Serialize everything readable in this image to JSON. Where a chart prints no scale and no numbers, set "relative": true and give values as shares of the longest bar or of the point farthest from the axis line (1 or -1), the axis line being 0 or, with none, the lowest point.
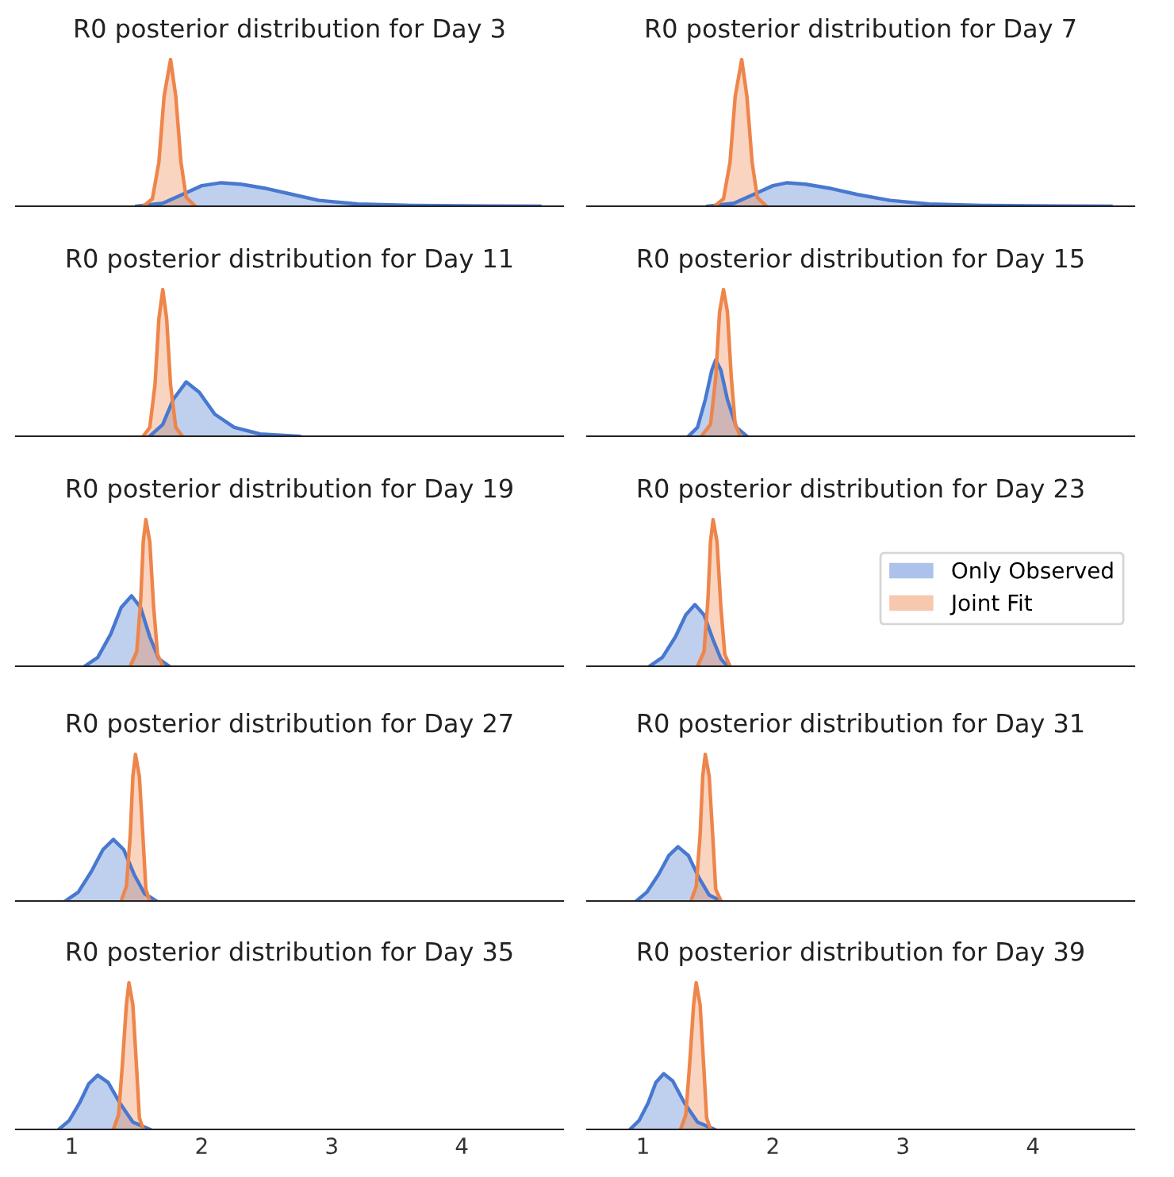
{
  "chart_data": [
    {
      "type": "area",
      "title": "R0 posterior distribution for Day 3",
      "relative": true,
      "xlim": [
        0.57,
        4.78
      ],
      "xticks": [
        1,
        2,
        3,
        4
      ],
      "tick_labels": false,
      "grid": false,
      "series": [
        {
          "color": "#4878d0",
          "x": [
            1.5,
            1.7,
            1.85,
            2.0,
            2.15,
            2.3,
            2.5,
            2.7,
            2.9,
            3.2,
            3.6,
            4.2,
            4.6
          ],
          "values": [
            0,
            0.02,
            0.08,
            0.14,
            0.16,
            0.15,
            0.12,
            0.08,
            0.04,
            0.015,
            0.006,
            0.002,
            0
          ]
        },
        {
          "color": "#ee854a",
          "x": [
            1.55,
            1.62,
            1.67,
            1.71,
            1.76,
            1.8,
            1.84,
            1.88,
            1.95
          ],
          "values": [
            0,
            0.05,
            0.3,
            0.75,
            1,
            0.75,
            0.3,
            0.06,
            0
          ]
        }
      ]
    },
    {
      "type": "area",
      "title": "R0 posterior distribution for Day 7",
      "relative": true,
      "xlim": [
        0.57,
        4.78
      ],
      "xticks": [
        1,
        2,
        3,
        4
      ],
      "tick_labels": false,
      "grid": false,
      "series": [
        {
          "color": "#4878d0",
          "x": [
            1.5,
            1.7,
            1.85,
            2.0,
            2.11,
            2.25,
            2.45,
            2.65,
            2.9,
            3.2,
            3.6,
            4.2,
            4.6
          ],
          "values": [
            0,
            0.02,
            0.08,
            0.14,
            0.16,
            0.15,
            0.12,
            0.08,
            0.04,
            0.015,
            0.006,
            0.002,
            0
          ]
        },
        {
          "color": "#ee854a",
          "x": [
            1.55,
            1.62,
            1.67,
            1.71,
            1.76,
            1.8,
            1.84,
            1.88,
            1.95
          ],
          "values": [
            0,
            0.05,
            0.3,
            0.75,
            1,
            0.75,
            0.3,
            0.06,
            0
          ]
        }
      ]
    },
    {
      "type": "area",
      "title": "R0 posterior distribution for Day 11",
      "relative": true,
      "xlim": [
        0.57,
        4.78
      ],
      "xticks": [
        1,
        2,
        3,
        4
      ],
      "tick_labels": false,
      "grid": false,
      "series": [
        {
          "color": "#4878d0",
          "x": [
            1.6,
            1.7,
            1.78,
            1.88,
            1.98,
            2.1,
            2.25,
            2.45,
            2.75
          ],
          "values": [
            0,
            0.08,
            0.25,
            0.37,
            0.3,
            0.15,
            0.06,
            0.015,
            0
          ]
        },
        {
          "color": "#ee854a",
          "x": [
            1.55,
            1.6,
            1.64,
            1.67,
            1.7,
            1.73,
            1.76,
            1.8,
            1.85
          ],
          "values": [
            0,
            0.06,
            0.35,
            0.8,
            1,
            0.8,
            0.35,
            0.06,
            0
          ]
        }
      ]
    },
    {
      "type": "area",
      "title": "R0 posterior distribution for Day 15",
      "relative": true,
      "xlim": [
        0.57,
        4.78
      ],
      "xticks": [
        1,
        2,
        3,
        4
      ],
      "tick_labels": false,
      "grid": false,
      "series": [
        {
          "color": "#4878d0",
          "x": [
            1.35,
            1.42,
            1.48,
            1.53,
            1.56,
            1.6,
            1.65,
            1.72,
            1.8
          ],
          "values": [
            0,
            0.06,
            0.25,
            0.45,
            0.52,
            0.45,
            0.25,
            0.06,
            0
          ]
        },
        {
          "color": "#ee854a",
          "x": [
            1.45,
            1.52,
            1.56,
            1.59,
            1.62,
            1.65,
            1.68,
            1.71,
            1.75
          ],
          "values": [
            0,
            0.08,
            0.4,
            0.85,
            1,
            0.85,
            0.4,
            0.08,
            0
          ]
        }
      ]
    },
    {
      "type": "area",
      "title": "R0 posterior distribution for Day 19",
      "relative": true,
      "xlim": [
        0.57,
        4.78
      ],
      "xticks": [
        1,
        2,
        3,
        4
      ],
      "tick_labels": false,
      "grid": false,
      "series": [
        {
          "color": "#4878d0",
          "x": [
            1.1,
            1.2,
            1.3,
            1.38,
            1.46,
            1.53,
            1.6,
            1.67,
            1.75
          ],
          "values": [
            0,
            0.06,
            0.22,
            0.4,
            0.48,
            0.4,
            0.2,
            0.05,
            0
          ]
        },
        {
          "color": "#ee854a",
          "x": [
            1.45,
            1.5,
            1.53,
            1.55,
            1.57,
            1.6,
            1.63,
            1.66,
            1.7
          ],
          "values": [
            0,
            0.1,
            0.45,
            0.85,
            1,
            0.85,
            0.4,
            0.08,
            0
          ]
        }
      ]
    },
    {
      "type": "area",
      "title": "R0 posterior distribution for Day 23",
      "relative": true,
      "xlim": [
        0.57,
        4.78
      ],
      "xticks": [
        1,
        2,
        3,
        4
      ],
      "tick_labels": false,
      "grid": false,
      "legend": "right",
      "series": [
        {
          "name": "Only Observed",
          "color": "#4878d0",
          "x": [
            1.05,
            1.15,
            1.25,
            1.33,
            1.4,
            1.47,
            1.54,
            1.6,
            1.65
          ],
          "values": [
            0,
            0.06,
            0.2,
            0.35,
            0.42,
            0.35,
            0.18,
            0.05,
            0
          ]
        },
        {
          "name": "Joint Fit",
          "color": "#ee854a",
          "x": [
            1.42,
            1.47,
            1.5,
            1.52,
            1.54,
            1.57,
            1.6,
            1.63,
            1.67
          ],
          "values": [
            0,
            0.1,
            0.45,
            0.85,
            1,
            0.85,
            0.4,
            0.08,
            0
          ]
        }
      ]
    },
    {
      "type": "area",
      "title": "R0 posterior distribution for Day 27",
      "relative": true,
      "xlim": [
        0.57,
        4.78
      ],
      "xticks": [
        1,
        2,
        3,
        4
      ],
      "tick_labels": false,
      "grid": false,
      "series": [
        {
          "color": "#4878d0",
          "x": [
            0.95,
            1.05,
            1.15,
            1.24,
            1.32,
            1.4,
            1.48,
            1.56,
            1.65
          ],
          "values": [
            0,
            0.06,
            0.2,
            0.35,
            0.42,
            0.35,
            0.18,
            0.05,
            0
          ]
        },
        {
          "color": "#ee854a",
          "x": [
            1.38,
            1.42,
            1.45,
            1.47,
            1.49,
            1.52,
            1.55,
            1.57,
            1.6
          ],
          "values": [
            0,
            0.1,
            0.45,
            0.85,
            1,
            0.85,
            0.4,
            0.08,
            0
          ]
        }
      ]
    },
    {
      "type": "area",
      "title": "R0 posterior distribution for Day 31",
      "relative": true,
      "xlim": [
        0.57,
        4.78
      ],
      "xticks": [
        1,
        2,
        3,
        4
      ],
      "tick_labels": false,
      "grid": false,
      "series": [
        {
          "color": "#4878d0",
          "x": [
            0.95,
            1.03,
            1.12,
            1.2,
            1.27,
            1.35,
            1.43,
            1.51,
            1.6
          ],
          "values": [
            0,
            0.06,
            0.18,
            0.31,
            0.37,
            0.31,
            0.16,
            0.04,
            0
          ]
        },
        {
          "color": "#ee854a",
          "x": [
            1.37,
            1.41,
            1.44,
            1.46,
            1.48,
            1.51,
            1.54,
            1.56,
            1.6
          ],
          "values": [
            0,
            0.1,
            0.45,
            0.85,
            1,
            0.85,
            0.4,
            0.08,
            0
          ]
        }
      ]
    },
    {
      "type": "area",
      "title": "R0 posterior distribution for Day 35",
      "relative": true,
      "xlim": [
        0.57,
        4.78
      ],
      "xticks": [
        1,
        2,
        3,
        4
      ],
      "tick_labels": "x",
      "grid": false,
      "series": [
        {
          "color": "#4878d0",
          "x": [
            0.9,
            0.98,
            1.06,
            1.13,
            1.2,
            1.28,
            1.37,
            1.47,
            1.6
          ],
          "values": [
            0,
            0.06,
            0.18,
            0.31,
            0.37,
            0.32,
            0.18,
            0.05,
            0
          ]
        },
        {
          "color": "#ee854a",
          "x": [
            1.32,
            1.36,
            1.39,
            1.42,
            1.44,
            1.47,
            1.5,
            1.52,
            1.55
          ],
          "values": [
            0,
            0.1,
            0.45,
            0.85,
            1,
            0.85,
            0.4,
            0.08,
            0
          ]
        }
      ]
    },
    {
      "type": "area",
      "title": "R0 posterior distribution for Day 39",
      "relative": true,
      "xlim": [
        0.57,
        4.78
      ],
      "xticks": [
        1,
        2,
        3,
        4
      ],
      "tick_labels": "x",
      "grid": false,
      "series": [
        {
          "color": "#4878d0",
          "x": [
            0.9,
            0.97,
            1.04,
            1.1,
            1.16,
            1.23,
            1.32,
            1.42,
            1.55
          ],
          "values": [
            0,
            0.06,
            0.18,
            0.32,
            0.38,
            0.33,
            0.18,
            0.05,
            0
          ]
        },
        {
          "color": "#ee854a",
          "x": [
            1.29,
            1.33,
            1.36,
            1.39,
            1.41,
            1.44,
            1.47,
            1.49,
            1.52
          ],
          "values": [
            0,
            0.1,
            0.45,
            0.85,
            1,
            0.85,
            0.4,
            0.08,
            0
          ]
        }
      ]
    }
  ]
}
